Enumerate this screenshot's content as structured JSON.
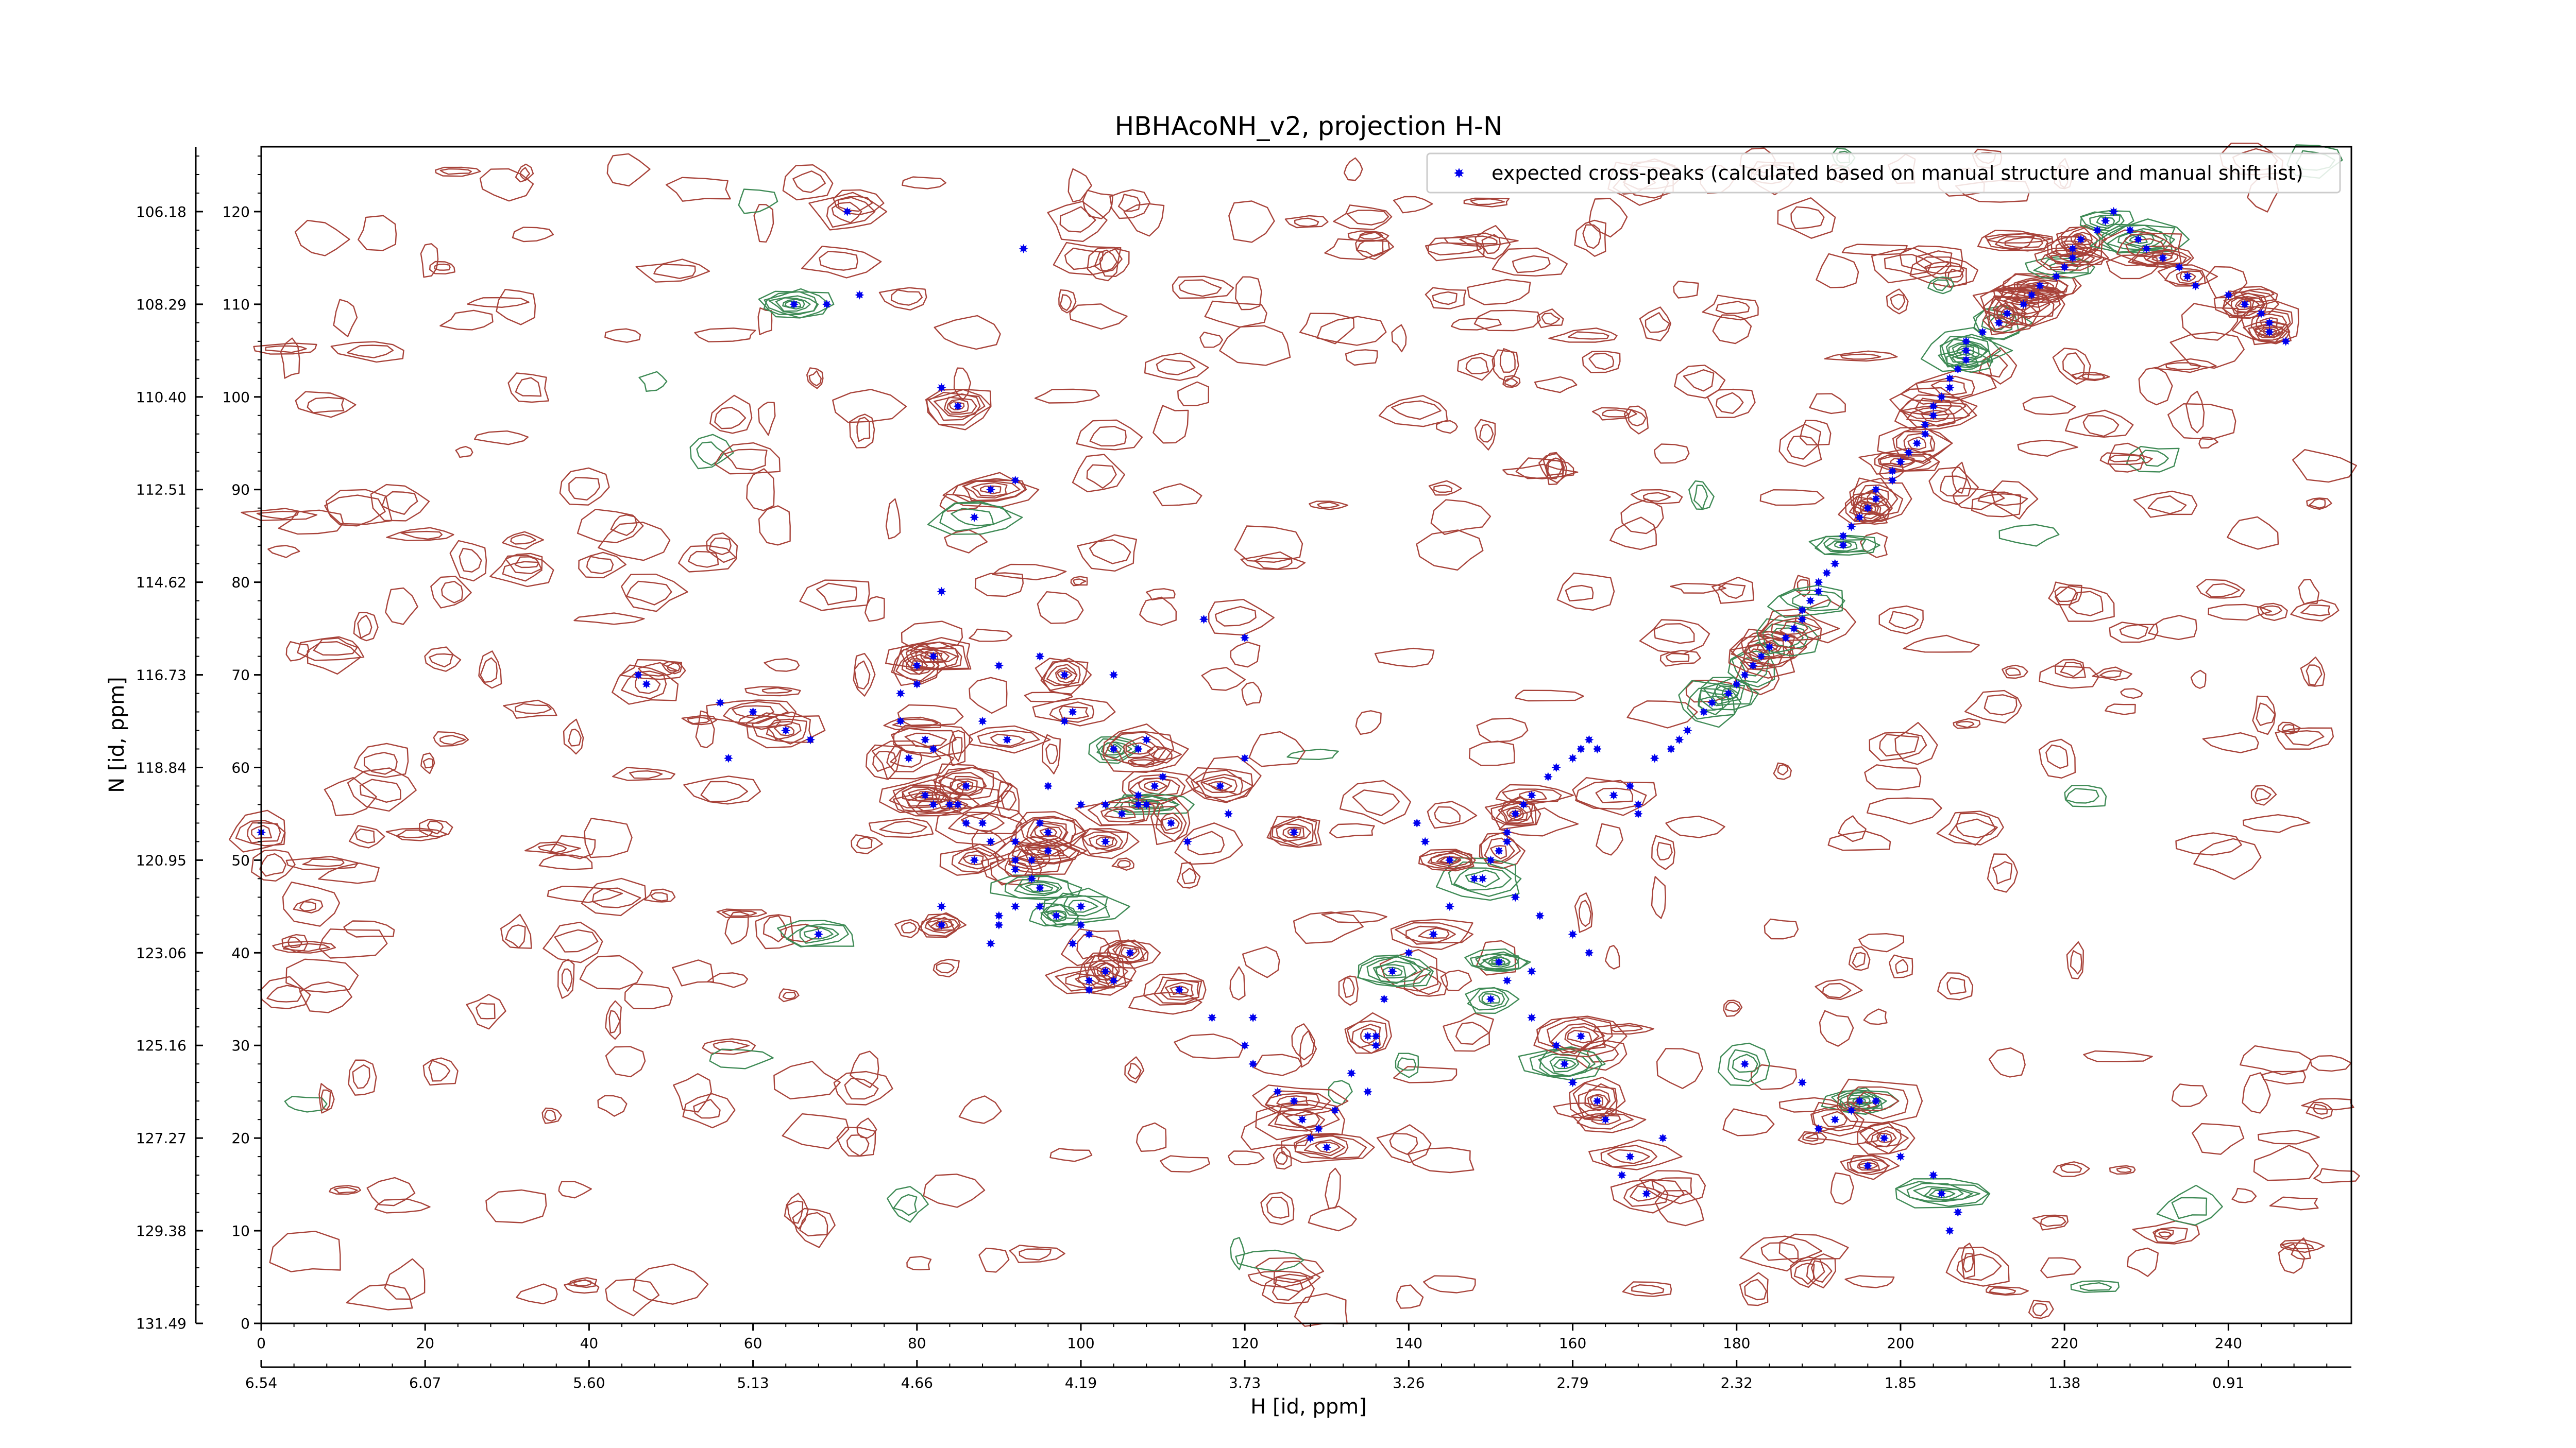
{
  "chart_data": {
    "type": "scatter",
    "title": "HBHAcoNH_v2, projection H-N",
    "xlabel": "H [id, ppm]",
    "ylabel": "N [id, ppm]",
    "xlim": [
      0,
      255
    ],
    "ylim": [
      0,
      127
    ],
    "x_ticks": [
      0,
      20,
      40,
      60,
      80,
      100,
      120,
      140,
      160,
      180,
      200,
      220,
      240
    ],
    "y_ticks": [
      0,
      10,
      20,
      30,
      40,
      50,
      60,
      70,
      80,
      90,
      100,
      110,
      120
    ],
    "x_secondary_ticks": [
      "6.54",
      "6.07",
      "5.60",
      "5.13",
      "4.66",
      "4.19",
      "3.73",
      "3.26",
      "2.79",
      "2.32",
      "1.85",
      "1.38",
      "0.91"
    ],
    "y_secondary_ticks": [
      "131.49",
      "129.38",
      "127.27",
      "125.16",
      "123.06",
      "120.95",
      "118.84",
      "116.73",
      "114.62",
      "112.51",
      "110.40",
      "108.29",
      "106.18"
    ],
    "legend_position": "top-right",
    "grid": false,
    "colors": {
      "peaks": "#0000ee",
      "contour_positive": "#a8433a",
      "contour_negative": "#3e8a55"
    },
    "series": [
      {
        "name": "expected cross-peaks (calculated based on manual structure and manual shift list)",
        "x": [
          71.5,
          69,
          65,
          93,
          85,
          83,
          89,
          92,
          87,
          83,
          73,
          57,
          68,
          82,
          82,
          88,
          96,
          80,
          80,
          78,
          78,
          90,
          82,
          81,
          91,
          88,
          95,
          98,
          99,
          98,
          104,
          104,
          107,
          108,
          110,
          109,
          108,
          113,
          118,
          117,
          120,
          115,
          120,
          105,
          107,
          107,
          103,
          100,
          95,
          96,
          92,
          92,
          92,
          94,
          95,
          92,
          90,
          90,
          83,
          89,
          83,
          84,
          86,
          95,
          97,
          99,
          100,
          100,
          101,
          106,
          104,
          103,
          101,
          101,
          112,
          116,
          121,
          120,
          121,
          124,
          126,
          127,
          129,
          128,
          130,
          131,
          135,
          133,
          136,
          136,
          137,
          138,
          140,
          143,
          145,
          148,
          150,
          151,
          152,
          152,
          153,
          154,
          155,
          157,
          158,
          160,
          161,
          162,
          163,
          165,
          168,
          168,
          167,
          170,
          172,
          173,
          174,
          176,
          177,
          179,
          181,
          180,
          182,
          183,
          184,
          186,
          187,
          188,
          188,
          189,
          190,
          190,
          191,
          192,
          193,
          193,
          194,
          195,
          196,
          197,
          197,
          199,
          199,
          200,
          201,
          202,
          203,
          203,
          204,
          204,
          205,
          206,
          206,
          207,
          208,
          208,
          208,
          210,
          212,
          213,
          215,
          216,
          217,
          219,
          220,
          221,
          221,
          222,
          224,
          225,
          226,
          228,
          229,
          230,
          232,
          234,
          235,
          236,
          240,
          242,
          244,
          245,
          245,
          247,
          135,
          181,
          188,
          195,
          190,
          192,
          194,
          197,
          198,
          200,
          196,
          204,
          205,
          207,
          206,
          169,
          166,
          167,
          171,
          164,
          163,
          160,
          159,
          158,
          161,
          155,
          150,
          152,
          155,
          151,
          162,
          160,
          156,
          153,
          149,
          145,
          142,
          141,
          126,
          111,
          103,
          96,
          94,
          89,
          87,
          86,
          85,
          81,
          79,
          67,
          64,
          60,
          56,
          47,
          46,
          0
        ],
        "y": [
          120,
          110,
          110,
          116,
          99,
          101,
          90,
          91,
          87,
          79,
          111,
          61,
          42,
          62,
          56,
          54,
          58,
          71,
          69,
          68,
          65,
          71,
          72,
          63,
          63,
          65,
          72,
          70,
          66,
          65,
          70,
          62,
          62,
          63,
          59,
          58,
          56,
          52,
          55,
          58,
          61,
          76,
          74,
          55,
          56,
          57,
          56,
          56,
          54,
          53,
          52,
          50,
          49,
          48,
          47,
          45,
          44,
          43,
          45,
          41,
          43,
          56,
          58,
          45,
          44,
          41,
          43,
          45,
          42,
          40,
          37,
          38,
          37,
          36,
          36,
          33,
          33,
          30,
          28,
          25,
          24,
          22,
          21,
          20,
          19,
          23,
          25,
          27,
          30,
          31,
          35,
          38,
          40,
          42,
          45,
          48,
          50,
          51,
          52,
          53,
          55,
          56,
          57,
          59,
          60,
          61,
          62,
          63,
          62,
          57,
          55,
          56,
          58,
          61,
          62,
          63,
          64,
          66,
          67,
          68,
          70,
          69,
          71,
          72,
          73,
          74,
          75,
          76,
          77,
          78,
          79,
          80,
          81,
          82,
          84,
          85,
          86,
          87,
          88,
          89,
          90,
          91,
          92,
          93,
          94,
          95,
          96,
          97,
          98,
          99,
          100,
          101,
          102,
          103,
          104,
          105,
          106,
          107,
          108,
          109,
          110,
          111,
          112,
          113,
          114,
          115,
          116,
          117,
          118,
          119,
          120,
          118,
          117,
          116,
          115,
          114,
          113,
          112,
          111,
          110,
          109,
          108,
          107,
          106,
          31,
          28,
          26,
          24,
          21,
          22,
          23,
          24,
          20,
          18,
          17,
          16,
          14,
          12,
          10,
          14,
          16,
          18,
          20,
          22,
          24,
          26,
          28,
          30,
          31,
          33,
          35,
          37,
          38,
          39,
          40,
          42,
          44,
          46,
          48,
          50,
          52,
          54,
          53,
          54,
          52,
          51,
          50,
          52,
          50,
          54,
          56,
          57,
          61,
          63,
          64,
          66,
          67,
          69,
          70,
          53
        ]
      }
    ]
  }
}
